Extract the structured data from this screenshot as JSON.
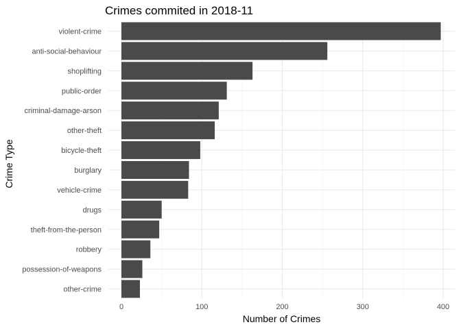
{
  "chart_data": {
    "type": "bar",
    "orientation": "horizontal",
    "title": "Crimes commited in 2018-11",
    "xlabel": "Number of Crimes",
    "ylabel": "Crime Type",
    "xlim": [
      0,
      410
    ],
    "x_ticks": [
      0,
      100,
      200,
      300,
      400
    ],
    "grid": true,
    "bar_color": "#4a4a4a",
    "categories": [
      "violent-crime",
      "anti-social-behaviour",
      "shoplifting",
      "public-order",
      "criminal-damage-arson",
      "other-theft",
      "bicycle-theft",
      "burglary",
      "vehicle-crime",
      "drugs",
      "theft-from-the-person",
      "robbery",
      "possession-of-weapons",
      "other-crime"
    ],
    "values": [
      397,
      256,
      163,
      131,
      121,
      116,
      98,
      84,
      83,
      50,
      47,
      36,
      26,
      23
    ]
  }
}
